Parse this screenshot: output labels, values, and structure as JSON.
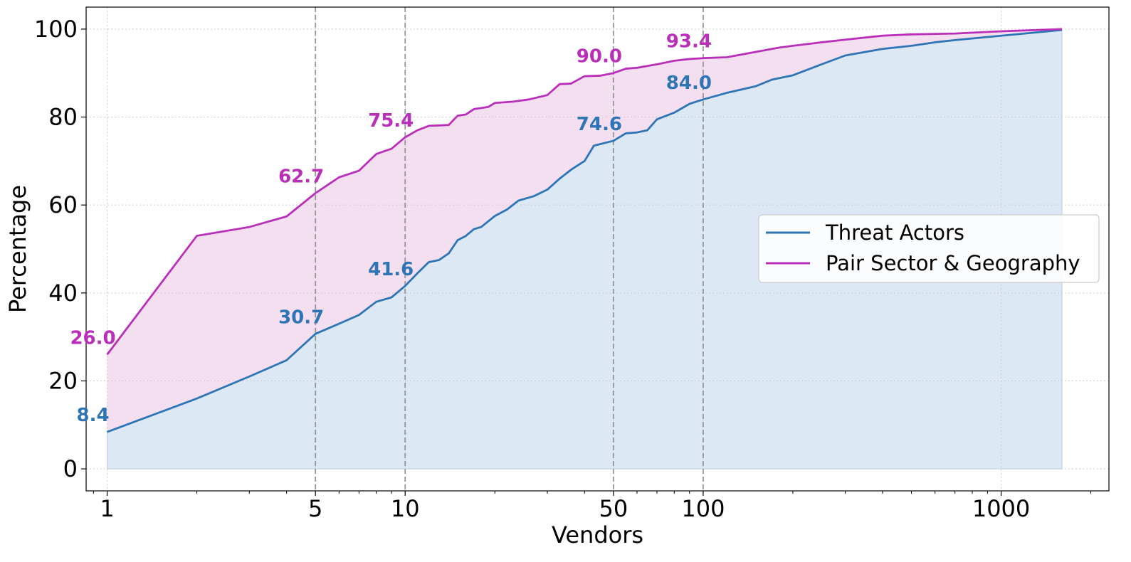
{
  "chart_data": {
    "type": "line",
    "xlabel": "Vendors",
    "ylabel": "Percentage",
    "xscale": "log",
    "xlim": [
      0.85,
      2300
    ],
    "ylim": [
      -5,
      105
    ],
    "grid": true,
    "legend_position": "center-right",
    "x_tick_labels": [
      "1",
      "5",
      "10",
      "50",
      "100",
      "1000"
    ],
    "x_ticks": [
      1,
      5,
      10,
      50,
      100,
      1000
    ],
    "y_ticks": [
      0,
      20,
      40,
      60,
      80,
      100
    ],
    "y_tick_labels": [
      "0",
      "20",
      "40",
      "60",
      "80",
      "100"
    ],
    "reference_lines_x": [
      5,
      10,
      50,
      100
    ],
    "series": [
      {
        "name": "Threat Actors",
        "color": "#2e75b6",
        "fill_color": "#dce8f4",
        "points": [
          [
            1,
            8.4
          ],
          [
            2,
            16
          ],
          [
            3,
            21
          ],
          [
            4,
            24.7
          ],
          [
            5,
            30.7
          ],
          [
            6,
            33
          ],
          [
            7,
            35
          ],
          [
            8,
            38
          ],
          [
            9,
            39
          ],
          [
            10,
            41.6
          ],
          [
            11,
            44.5
          ],
          [
            12,
            47
          ],
          [
            13,
            47.5
          ],
          [
            14,
            49
          ],
          [
            15,
            52
          ],
          [
            16,
            53
          ],
          [
            17,
            54.5
          ],
          [
            18,
            55
          ],
          [
            20,
            57.5
          ],
          [
            22,
            59
          ],
          [
            24,
            61
          ],
          [
            27,
            62
          ],
          [
            30,
            63.5
          ],
          [
            33,
            66
          ],
          [
            36,
            68
          ],
          [
            40,
            70
          ],
          [
            43,
            73.5
          ],
          [
            50,
            74.6
          ],
          [
            55,
            76.3
          ],
          [
            60,
            76.5
          ],
          [
            65,
            77
          ],
          [
            70,
            79.5
          ],
          [
            80,
            81
          ],
          [
            90,
            83
          ],
          [
            100,
            84
          ],
          [
            120,
            85.5
          ],
          [
            150,
            87
          ],
          [
            170,
            88.5
          ],
          [
            200,
            89.5
          ],
          [
            250,
            92
          ],
          [
            300,
            94
          ],
          [
            400,
            95.5
          ],
          [
            500,
            96.2
          ],
          [
            600,
            97
          ],
          [
            700,
            97.5
          ],
          [
            900,
            98.2
          ],
          [
            1200,
            99
          ],
          [
            1600,
            99.8
          ]
        ]
      },
      {
        "name": "Pair Sector & Geography",
        "color": "#b92fb9",
        "fill_color": "#f4dff1",
        "points": [
          [
            1,
            26
          ],
          [
            2,
            53
          ],
          [
            3,
            55
          ],
          [
            4,
            57.4
          ],
          [
            5,
            62.7
          ],
          [
            6,
            66.3
          ],
          [
            7,
            67.8
          ],
          [
            8,
            71.6
          ],
          [
            9,
            72.8
          ],
          [
            10,
            75.4
          ],
          [
            11,
            77
          ],
          [
            12,
            78
          ],
          [
            13,
            78.1
          ],
          [
            14,
            78.2
          ],
          [
            15,
            80.3
          ],
          [
            16,
            80.6
          ],
          [
            17,
            81.8
          ],
          [
            19,
            82.3
          ],
          [
            20,
            83.2
          ],
          [
            23,
            83.5
          ],
          [
            26,
            84
          ],
          [
            30,
            85
          ],
          [
            33,
            87.5
          ],
          [
            36,
            87.6
          ],
          [
            40,
            89.3
          ],
          [
            45,
            89.4
          ],
          [
            50,
            90
          ],
          [
            55,
            91
          ],
          [
            60,
            91.2
          ],
          [
            70,
            92
          ],
          [
            80,
            92.8
          ],
          [
            90,
            93.2
          ],
          [
            100,
            93.4
          ],
          [
            120,
            93.6
          ],
          [
            150,
            94.8
          ],
          [
            180,
            95.8
          ],
          [
            200,
            96.2
          ],
          [
            250,
            97
          ],
          [
            300,
            97.6
          ],
          [
            400,
            98.5
          ],
          [
            500,
            98.8
          ],
          [
            700,
            99
          ],
          [
            1000,
            99.5
          ],
          [
            1600,
            100
          ]
        ]
      }
    ],
    "annotations": [
      {
        "series": "Threat Actors",
        "x": 1,
        "y": 8.4,
        "text": "8.4"
      },
      {
        "series": "Threat Actors",
        "x": 5,
        "y": 30.7,
        "text": "30.7"
      },
      {
        "series": "Threat Actors",
        "x": 10,
        "y": 41.6,
        "text": "41.6"
      },
      {
        "series": "Threat Actors",
        "x": 50,
        "y": 74.6,
        "text": "74.6"
      },
      {
        "series": "Threat Actors",
        "x": 100,
        "y": 84.0,
        "text": "84.0"
      },
      {
        "series": "Pair Sector & Geography",
        "x": 1,
        "y": 26.0,
        "text": "26.0"
      },
      {
        "series": "Pair Sector & Geography",
        "x": 5,
        "y": 62.7,
        "text": "62.7"
      },
      {
        "series": "Pair Sector & Geography",
        "x": 10,
        "y": 75.4,
        "text": "75.4"
      },
      {
        "series": "Pair Sector & Geography",
        "x": 50,
        "y": 90.0,
        "text": "90.0"
      },
      {
        "series": "Pair Sector & Geography",
        "x": 100,
        "y": 93.4,
        "text": "93.4"
      }
    ]
  }
}
